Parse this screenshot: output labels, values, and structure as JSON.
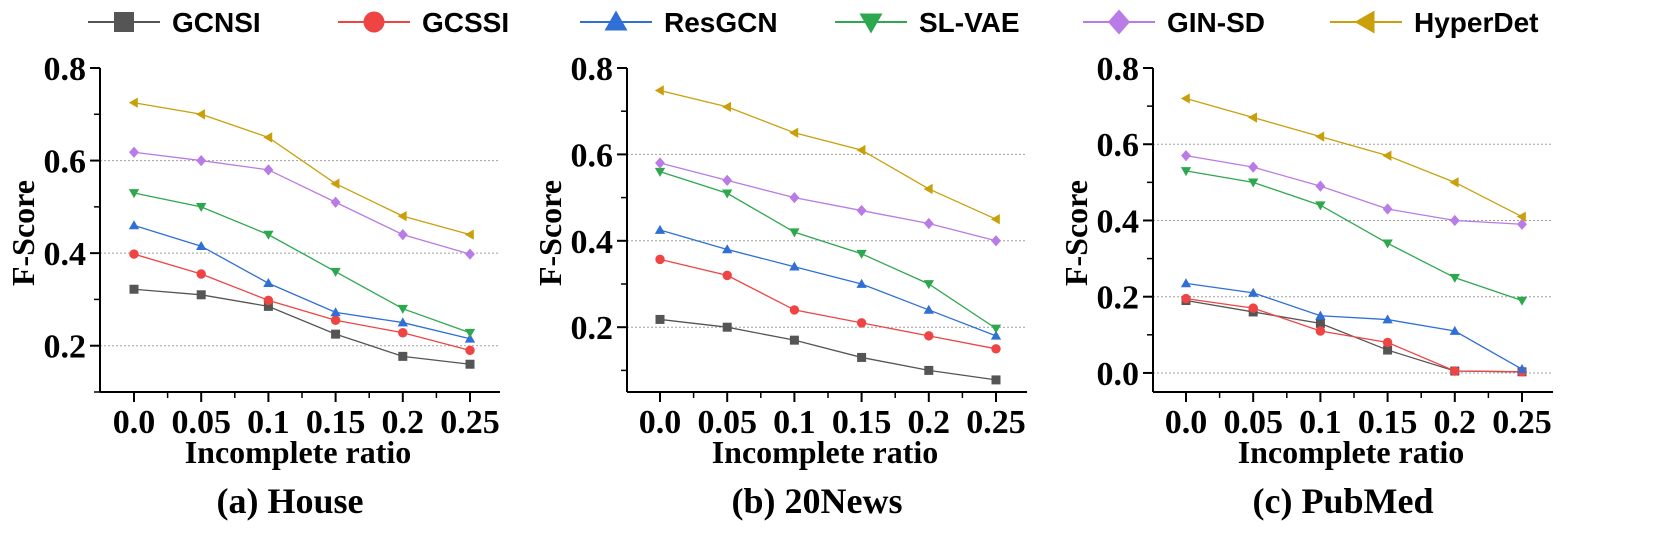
{
  "legend": [
    {
      "name": "GCNSI",
      "color": "#555555",
      "marker": "square"
    },
    {
      "name": "GCSSI",
      "color": "#ef4444",
      "marker": "circle"
    },
    {
      "name": "ResGCN",
      "color": "#2f6fd6",
      "marker": "triangle-up"
    },
    {
      "name": "SL-VAE",
      "color": "#2ea84f",
      "marker": "triangle-down"
    },
    {
      "name": "GIN-SD",
      "color": "#b97be6",
      "marker": "diamond"
    },
    {
      "name": "HyperDet",
      "color": "#c9a00b",
      "marker": "triangle-left"
    }
  ],
  "chart_data": [
    {
      "type": "line",
      "caption": "(a) House",
      "xlabel": "Incomplete ratio",
      "ylabel": "F-Score",
      "categories": [
        "0.0",
        "0.05",
        "0.1",
        "0.15",
        "0.2",
        "0.25"
      ],
      "ylim": [
        0.1,
        0.8
      ],
      "yticks": [
        0.2,
        0.4,
        0.6,
        0.8
      ],
      "ytick_labels": [
        "0.2",
        "0.4",
        "0.6",
        "0.8"
      ],
      "gridlines": [
        0.2,
        0.4,
        0.6
      ],
      "series": [
        {
          "name": "GCNSI",
          "values": [
            0.322,
            0.31,
            0.285,
            0.225,
            0.177,
            0.16
          ]
        },
        {
          "name": "GCSSI",
          "values": [
            0.398,
            0.355,
            0.298,
            0.255,
            0.228,
            0.19
          ]
        },
        {
          "name": "ResGCN",
          "values": [
            0.46,
            0.415,
            0.335,
            0.272,
            0.25,
            0.215
          ]
        },
        {
          "name": "SL-VAE",
          "values": [
            0.53,
            0.5,
            0.44,
            0.36,
            0.28,
            0.228
          ]
        },
        {
          "name": "GIN-SD",
          "values": [
            0.618,
            0.6,
            0.58,
            0.51,
            0.44,
            0.398
          ]
        },
        {
          "name": "HyperDet",
          "values": [
            0.725,
            0.7,
            0.65,
            0.55,
            0.48,
            0.44
          ]
        }
      ]
    },
    {
      "type": "line",
      "caption": "(b) 20News",
      "xlabel": "Incomplete ratio",
      "ylabel": "F-Score",
      "categories": [
        "0.0",
        "0.05",
        "0.1",
        "0.15",
        "0.2",
        "0.25"
      ],
      "ylim": [
        0.05,
        0.8
      ],
      "yticks": [
        0.2,
        0.4,
        0.6,
        0.8
      ],
      "ytick_labels": [
        "0.2",
        "0.4",
        "0.6",
        "0.8"
      ],
      "gridlines": [
        0.2,
        0.4,
        0.6
      ],
      "series": [
        {
          "name": "GCNSI",
          "values": [
            0.218,
            0.2,
            0.17,
            0.13,
            0.1,
            0.078
          ]
        },
        {
          "name": "GCSSI",
          "values": [
            0.357,
            0.32,
            0.24,
            0.21,
            0.18,
            0.15
          ]
        },
        {
          "name": "ResGCN",
          "values": [
            0.425,
            0.38,
            0.34,
            0.3,
            0.24,
            0.18
          ]
        },
        {
          "name": "SL-VAE",
          "values": [
            0.56,
            0.51,
            0.42,
            0.37,
            0.3,
            0.197
          ]
        },
        {
          "name": "GIN-SD",
          "values": [
            0.58,
            0.54,
            0.5,
            0.47,
            0.44,
            0.4
          ]
        },
        {
          "name": "HyperDet",
          "values": [
            0.748,
            0.71,
            0.65,
            0.61,
            0.52,
            0.45
          ]
        }
      ]
    },
    {
      "type": "line",
      "caption": "(c) PubMed",
      "xlabel": "Incomplete ratio",
      "ylabel": "F-Score",
      "categories": [
        "0.0",
        "0.05",
        "0.1",
        "0.15",
        "0.2",
        "0.25"
      ],
      "ylim": [
        -0.05,
        0.8
      ],
      "yticks": [
        0.0,
        0.2,
        0.4,
        0.6,
        0.8
      ],
      "ytick_labels": [
        "0.0",
        "0.2",
        "0.4",
        "0.6",
        "0.8"
      ],
      "gridlines": [
        0.0,
        0.2,
        0.4,
        0.6
      ],
      "series": [
        {
          "name": "GCNSI",
          "values": [
            0.19,
            0.16,
            0.13,
            0.06,
            0.005,
            0.003
          ]
        },
        {
          "name": "GCSSI",
          "values": [
            0.195,
            0.17,
            0.11,
            0.08,
            0.005,
            0.003
          ]
        },
        {
          "name": "ResGCN",
          "values": [
            0.235,
            0.21,
            0.15,
            0.14,
            0.11,
            0.01
          ]
        },
        {
          "name": "SL-VAE",
          "values": [
            0.53,
            0.5,
            0.44,
            0.34,
            0.25,
            0.19
          ]
        },
        {
          "name": "GIN-SD",
          "values": [
            0.57,
            0.54,
            0.49,
            0.43,
            0.4,
            0.39
          ]
        },
        {
          "name": "HyperDet",
          "values": [
            0.72,
            0.67,
            0.62,
            0.57,
            0.5,
            0.41
          ]
        }
      ]
    }
  ]
}
